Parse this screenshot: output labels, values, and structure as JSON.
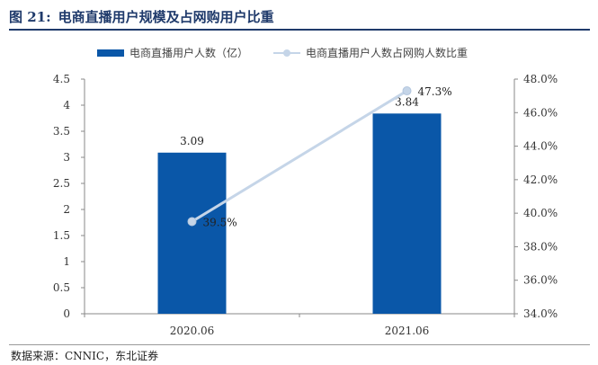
{
  "figure": {
    "number": "图 21:",
    "title": "电商直播用户规模及占网购用户比重"
  },
  "source": "数据来源：CNNIC，东北证券",
  "colors": {
    "bar": "#0a57a8",
    "line": "#c5d5e8",
    "title": "#1f3a6b"
  },
  "chart_data": {
    "type": "bar",
    "categories": [
      "2020.06",
      "2021.06"
    ],
    "series": [
      {
        "name": "电商直播用户人数（亿）",
        "type": "bar",
        "axis": "left",
        "values": [
          3.09,
          3.84
        ],
        "labels": [
          "3.09",
          "3.84"
        ]
      },
      {
        "name": "电商直播用户人数占网购人数比重",
        "type": "line",
        "axis": "right",
        "values": [
          39.5,
          47.3
        ],
        "labels": [
          "39.5%",
          "47.3%"
        ]
      }
    ],
    "y_left": {
      "min": 0,
      "max": 4.5,
      "ticks": [
        "0",
        "0.5",
        "1",
        "1.5",
        "2",
        "2.5",
        "3",
        "3.5",
        "4",
        "4.5"
      ]
    },
    "y_right": {
      "min": 34,
      "max": 48,
      "ticks": [
        "34.0%",
        "36.0%",
        "38.0%",
        "40.0%",
        "42.0%",
        "44.0%",
        "46.0%",
        "48.0%"
      ]
    },
    "grid": false,
    "legend": "top"
  }
}
